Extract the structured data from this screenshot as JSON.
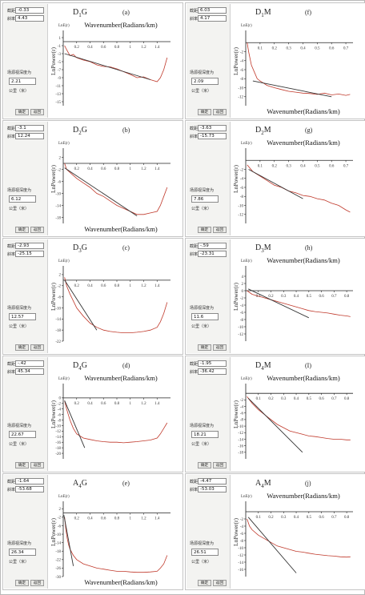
{
  "ui": {
    "intercept_label": "截距",
    "slope_label": "斜率",
    "depth_label": "场源视深度为",
    "unit_label": "公里（米）",
    "ok_label": "确定",
    "back_label": "返回"
  },
  "panels": [
    {
      "id": "a",
      "letter": "(a)",
      "title_main": "D",
      "title_sub": "1",
      "title_end": "G",
      "intercept": "-0.33",
      "slope": "4.43",
      "depth": "2.21",
      "ylabel": "LnPower(r)",
      "ylabel_top": "LnE(r)",
      "xlabel": "Wavenumber(Radians/km)",
      "xlabel_pos": "top"
    },
    {
      "id": "f",
      "letter": "(f)",
      "title_main": "D",
      "title_sub": "1",
      "title_end": "M",
      "intercept": "6.03",
      "slope": "4.17",
      "depth": "2.09",
      "ylabel": "LnPower(r)",
      "ylabel_top": "LnE(r)",
      "xlabel": "Wavenumber(Radians/km)",
      "xlabel_pos": "bottom"
    },
    {
      "id": "b",
      "letter": "(b)",
      "title_main": "D",
      "title_sub": "2",
      "title_end": "G",
      "intercept": "-3.1",
      "slope": "12.24",
      "depth": "6.12",
      "ylabel": "LnPower(r)",
      "ylabel_top": "LnE(r)",
      "xlabel": "Wavenumber(Radians/km)",
      "xlabel_pos": "bottom"
    },
    {
      "id": "g",
      "letter": "(g)",
      "title_main": "D",
      "title_sub": "2",
      "title_end": "M",
      "intercept": "-3.63",
      "slope": "-15.73",
      "depth": "7.86",
      "ylabel": "LnPower(r)",
      "ylabel_top": "LnE(r)",
      "xlabel": "Wavenumber(Radians/km)",
      "xlabel_pos": "top"
    },
    {
      "id": "c",
      "letter": "(c)",
      "title_main": "D",
      "title_sub": "3",
      "title_end": "G",
      "intercept": "-2.93",
      "slope": "-25.15",
      "depth": "12.57",
      "ylabel": "LnPower(r)",
      "ylabel_top": "LnE(r)",
      "xlabel": "",
      "xlabel_pos": "none"
    },
    {
      "id": "h",
      "letter": "(h)",
      "title_main": "D",
      "title_sub": "3",
      "title_end": "M",
      "intercept": "-.59",
      "slope": "-23.31",
      "depth": "11.6",
      "ylabel": "LnPower(r)",
      "ylabel_top": "LnE(r)",
      "xlabel": "Wavenumber(Radians/km)",
      "xlabel_pos": "top"
    },
    {
      "id": "d",
      "letter": "(d)",
      "title_main": "D",
      "title_sub": "4",
      "title_end": "G",
      "intercept": "-.42",
      "slope": "45.34",
      "depth": "22.67",
      "ylabel": "LnPower(r)",
      "ylabel_top": "LnE(r)",
      "xlabel": "Wavenumber(Radians/km)",
      "xlabel_pos": "top"
    },
    {
      "id": "i",
      "letter": "(I)",
      "title_main": "D",
      "title_sub": "4",
      "title_end": "M",
      "intercept": "-1.95",
      "slope": "-36.42",
      "depth": "18.21",
      "ylabel": "LnPower(r)",
      "ylabel_top": "LnE(r)",
      "xlabel": "Wavenumber(Radians/km)",
      "xlabel_pos": "top"
    },
    {
      "id": "e",
      "letter": "(e)",
      "title_main": "A",
      "title_sub": "4",
      "title_end": "G",
      "intercept": "-1.64",
      "slope": "-53.68",
      "depth": "26.34",
      "ylabel": "LnPower(r)",
      "ylabel_top": "LnE(r)",
      "xlabel": "Wavenumber(Radians/km)",
      "xlabel_pos": "bottom"
    },
    {
      "id": "j",
      "letter": "(j)",
      "title_main": "A",
      "title_sub": "4",
      "title_end": "M",
      "intercept": "-4.47",
      "slope": "-53.03",
      "depth": "26.51",
      "ylabel": "LnPower(r)",
      "ylabel_top": "LnE(r)",
      "xlabel": "Wavenumber(Radians/km)",
      "xlabel_pos": "top"
    }
  ],
  "chart_data": [
    {
      "type": "line",
      "panel": "a",
      "xlim": [
        0,
        1.6
      ],
      "ylim": [
        -16,
        2
      ],
      "xticks": [
        "0.2",
        "0.4",
        "0.6",
        "0.8",
        "1",
        "1.2",
        "1.4"
      ],
      "yticks": [
        "1",
        "-1",
        "-3",
        "-5",
        "-7",
        "-9",
        "-11",
        "-13",
        "-15"
      ],
      "series": [
        {
          "color": "#c0392b",
          "x": [
            0.02,
            0.05,
            0.1,
            0.15,
            0.2,
            0.3,
            0.4,
            0.5,
            0.6,
            0.7,
            0.8,
            0.9,
            1.0,
            1.1,
            1.2,
            1.3,
            1.4,
            1.45,
            1.5,
            1.55
          ],
          "y": [
            -1,
            -2,
            -3.5,
            -3.2,
            -4,
            -4.6,
            -5,
            -5.8,
            -6.2,
            -6.3,
            -6.8,
            -7.5,
            -8.2,
            -9,
            -8.8,
            -9.5,
            -10,
            -9,
            -7,
            -4
          ]
        },
        {
          "color": "#333333",
          "x": [
            0.02,
            1.3
          ],
          "y": [
            -3,
            -9.5
          ]
        }
      ]
    },
    {
      "type": "line",
      "panel": "f",
      "xlim": [
        0,
        0.75
      ],
      "ylim": [
        -14,
        2
      ],
      "xticks": [
        "0.1",
        "0.2",
        "0.3",
        "0.4",
        "0.5",
        "0.6",
        "0.7"
      ],
      "yticks": [
        "-2",
        "-4",
        "-6",
        "-8",
        "-10",
        "-12"
      ],
      "series": [
        {
          "color": "#c0392b",
          "x": [
            0.01,
            0.02,
            0.04,
            0.06,
            0.08,
            0.1,
            0.15,
            0.2,
            0.25,
            0.3,
            0.35,
            0.4,
            0.45,
            0.5,
            0.55,
            0.6,
            0.65,
            0.7,
            0.73
          ],
          "y": [
            0,
            -2,
            -5,
            -6.5,
            -8,
            -8.5,
            -9.5,
            -10,
            -10.4,
            -10.8,
            -11,
            -11.2,
            -11.3,
            -11.5,
            -11.2,
            -11.6,
            -11.4,
            -11.7,
            -11.5
          ]
        },
        {
          "color": "#333333",
          "x": [
            0.05,
            0.6
          ],
          "y": [
            -8.5,
            -12
          ]
        }
      ]
    },
    {
      "type": "line",
      "panel": "b",
      "xlim": [
        0,
        1.6
      ],
      "ylim": [
        -20,
        4
      ],
      "xticks": [
        "0.2",
        "0.4",
        "0.6",
        "0.8",
        "1",
        "1.2",
        "1.4"
      ],
      "yticks": [
        "2",
        "-2",
        "-6",
        "-10",
        "-14",
        "-18"
      ],
      "series": [
        {
          "color": "#c0392b",
          "x": [
            0.02,
            0.05,
            0.1,
            0.2,
            0.3,
            0.4,
            0.5,
            0.6,
            0.7,
            0.8,
            0.9,
            1.0,
            1.1,
            1.2,
            1.3,
            1.4,
            1.45,
            1.5,
            1.55
          ],
          "y": [
            0,
            -2,
            -3,
            -5,
            -6.5,
            -8,
            -10,
            -11,
            -12.5,
            -14,
            -15,
            -16,
            -17,
            -17,
            -16.5,
            -16,
            -14,
            -11,
            -8
          ]
        },
        {
          "color": "#333333",
          "x": [
            0.02,
            1.1
          ],
          "y": [
            -1.5,
            -17.5
          ]
        }
      ]
    },
    {
      "type": "line",
      "panel": "g",
      "xlim": [
        0,
        0.75
      ],
      "ylim": [
        -14,
        2
      ],
      "xticks": [
        "0.1",
        "0.2",
        "0.3",
        "0.4",
        "0.5",
        "0.6",
        "0.7"
      ],
      "yticks": [
        "-2",
        "-4",
        "-6",
        "-8",
        "-10",
        "-12"
      ],
      "series": [
        {
          "color": "#c0392b",
          "x": [
            0.01,
            0.05,
            0.1,
            0.15,
            0.2,
            0.25,
            0.3,
            0.35,
            0.4,
            0.45,
            0.5,
            0.55,
            0.6,
            0.65,
            0.7,
            0.73
          ],
          "y": [
            -1,
            -2.5,
            -3.5,
            -4.5,
            -5.5,
            -6,
            -6.8,
            -7.2,
            -7.8,
            -8,
            -8.5,
            -8.8,
            -9.5,
            -10,
            -11,
            -11.5
          ]
        },
        {
          "color": "#333333",
          "x": [
            0.02,
            0.4
          ],
          "y": [
            -2,
            -8.5
          ]
        }
      ]
    },
    {
      "type": "line",
      "panel": "c",
      "xlim": [
        0,
        1.6
      ],
      "ylim": [
        -22,
        4
      ],
      "xticks": [
        "0.2",
        "0.4",
        "0.6",
        "0.8",
        "1",
        "1.2",
        "1.4"
      ],
      "yticks": [
        "2",
        "-2",
        "-6",
        "-10",
        "-14",
        "-18",
        "-22"
      ],
      "series": [
        {
          "color": "#c0392b",
          "x": [
            0.02,
            0.05,
            0.1,
            0.15,
            0.2,
            0.3,
            0.4,
            0.5,
            0.6,
            0.7,
            0.8,
            0.9,
            1.0,
            1.1,
            1.2,
            1.3,
            1.4,
            1.45,
            1.5,
            1.55
          ],
          "y": [
            1,
            -2,
            -5,
            -7.5,
            -10,
            -13,
            -15.5,
            -17,
            -18,
            -18.5,
            -18.8,
            -19,
            -19,
            -18.8,
            -18.5,
            -18,
            -17,
            -15,
            -12,
            -8
          ]
        },
        {
          "color": "#333333",
          "x": [
            0.02,
            0.5
          ],
          "y": [
            0,
            -18
          ]
        }
      ]
    },
    {
      "type": "line",
      "panel": "h",
      "xlim": [
        0,
        0.85
      ],
      "ylim": [
        -14,
        6
      ],
      "xticks": [
        "0.1",
        "0.2",
        "0.3",
        "0.4",
        "0.5",
        "0.6",
        "0.7",
        "0.8"
      ],
      "yticks": [
        "4",
        "2",
        "0",
        "-2",
        "-4",
        "-6",
        "-8",
        "-10",
        "-12"
      ],
      "series": [
        {
          "color": "#c0392b",
          "x": [
            0.01,
            0.05,
            0.1,
            0.15,
            0.2,
            0.25,
            0.3,
            0.35,
            0.4,
            0.45,
            0.5,
            0.55,
            0.6,
            0.65,
            0.7,
            0.75,
            0.8,
            0.83
          ],
          "y": [
            0,
            -1,
            -1.5,
            -2,
            -2.5,
            -3,
            -3.5,
            -4,
            -4.5,
            -5,
            -5.5,
            -5.8,
            -6,
            -6.2,
            -6.5,
            -6.8,
            -7,
            -7.2
          ]
        },
        {
          "color": "#333333",
          "x": [
            0.02,
            0.5
          ],
          "y": [
            0.5,
            -7.5
          ]
        }
      ]
    },
    {
      "type": "line",
      "panel": "d",
      "xlim": [
        0,
        1.6
      ],
      "ylim": [
        -22,
        4
      ],
      "xticks": [
        "0.2",
        "0.4",
        "0.6",
        "0.8",
        "1",
        "1.2",
        "1.4"
      ],
      "yticks": [
        "0",
        "-2",
        "-4",
        "-6",
        "-8",
        "-10",
        "-12",
        "-14",
        "-16",
        "-18",
        "-20"
      ],
      "series": [
        {
          "color": "#c0392b",
          "x": [
            0.02,
            0.05,
            0.1,
            0.15,
            0.2,
            0.3,
            0.4,
            0.5,
            0.6,
            0.7,
            0.8,
            0.9,
            1.0,
            1.1,
            1.2,
            1.3,
            1.4,
            1.45,
            1.5,
            1.55
          ],
          "y": [
            -1,
            -4,
            -8,
            -11,
            -13,
            -14.5,
            -15,
            -15.5,
            -15.8,
            -16,
            -16,
            -16.2,
            -16,
            -15.8,
            -15.5,
            -15.2,
            -14.5,
            -13,
            -11,
            -9
          ]
        },
        {
          "color": "#333333",
          "x": [
            0.02,
            0.32
          ],
          "y": [
            -1,
            -18
          ]
        }
      ]
    },
    {
      "type": "line",
      "panel": "i",
      "xlim": [
        0,
        0.85
      ],
      "ylim": [
        -20,
        2
      ],
      "xticks": [
        "0.1",
        "0.2",
        "0.3",
        "0.4",
        "0.5",
        "0.6",
        "0.7",
        "0.8"
      ],
      "yticks": [
        "-2",
        "-4",
        "-6",
        "-8",
        "-10",
        "-12",
        "-14",
        "-16",
        "-18"
      ],
      "series": [
        {
          "color": "#c0392b",
          "x": [
            0.01,
            0.05,
            0.1,
            0.15,
            0.2,
            0.25,
            0.3,
            0.35,
            0.4,
            0.45,
            0.5,
            0.55,
            0.6,
            0.65,
            0.7,
            0.75,
            0.8,
            0.83
          ],
          "y": [
            -1,
            -3,
            -5,
            -6.5,
            -8,
            -9.5,
            -10.5,
            -11.5,
            -12,
            -12.5,
            -13,
            -13.2,
            -13.5,
            -13.8,
            -14,
            -14,
            -14.2,
            -14.2
          ]
        },
        {
          "color": "#333333",
          "x": [
            0.02,
            0.45
          ],
          "y": [
            -1.5,
            -18
          ]
        }
      ]
    },
    {
      "type": "line",
      "panel": "e",
      "xlim": [
        0,
        1.6
      ],
      "ylim": [
        -30,
        4
      ],
      "xticks": [
        "0.2",
        "0.4",
        "0.6",
        "0.8",
        "1",
        "1.2",
        "1.4"
      ],
      "yticks": [
        "2",
        "-2",
        "-6",
        "-10",
        "-14",
        "-18",
        "-22",
        "-26",
        "-30"
      ],
      "series": [
        {
          "color": "#c0392b",
          "x": [
            0.02,
            0.04,
            0.06,
            0.08,
            0.1,
            0.15,
            0.2,
            0.3,
            0.4,
            0.5,
            0.6,
            0.7,
            0.8,
            0.9,
            1.0,
            1.1,
            1.2,
            1.3,
            1.4,
            1.45,
            1.5,
            1.55
          ],
          "y": [
            -2,
            -8,
            -12,
            -15,
            -17,
            -20,
            -22,
            -24,
            -25,
            -26,
            -26.5,
            -27,
            -27.5,
            -27.5,
            -27.8,
            -28,
            -28,
            -27.8,
            -27.5,
            -26,
            -24,
            -20
          ]
        },
        {
          "color": "#333333",
          "x": [
            0.01,
            0.15
          ],
          "y": [
            -1,
            -25
          ]
        }
      ]
    },
    {
      "type": "line",
      "panel": "j",
      "xlim": [
        0,
        0.85
      ],
      "ylim": [
        -18,
        2
      ],
      "xticks": [
        "0.1",
        "0.2",
        "0.3",
        "0.4",
        "0.5",
        "0.6",
        "0.7",
        "0.8"
      ],
      "yticks": [
        "-2",
        "-4",
        "-6",
        "-8",
        "-10",
        "-12",
        "-14",
        "-16"
      ],
      "series": [
        {
          "color": "#c0392b",
          "x": [
            0.01,
            0.03,
            0.05,
            0.1,
            0.15,
            0.2,
            0.25,
            0.3,
            0.35,
            0.4,
            0.45,
            0.5,
            0.55,
            0.6,
            0.65,
            0.7,
            0.75,
            0.8,
            0.83
          ],
          "y": [
            -2,
            -4,
            -5,
            -6.5,
            -7.5,
            -8.5,
            -9.5,
            -10,
            -10.5,
            -11,
            -11.2,
            -11.5,
            -11.8,
            -12,
            -12.2,
            -12.3,
            -12.5,
            -12.6,
            -12.5
          ]
        },
        {
          "color": "#333333",
          "x": [
            0.02,
            0.4
          ],
          "y": [
            -1.5,
            -17
          ]
        }
      ]
    }
  ]
}
